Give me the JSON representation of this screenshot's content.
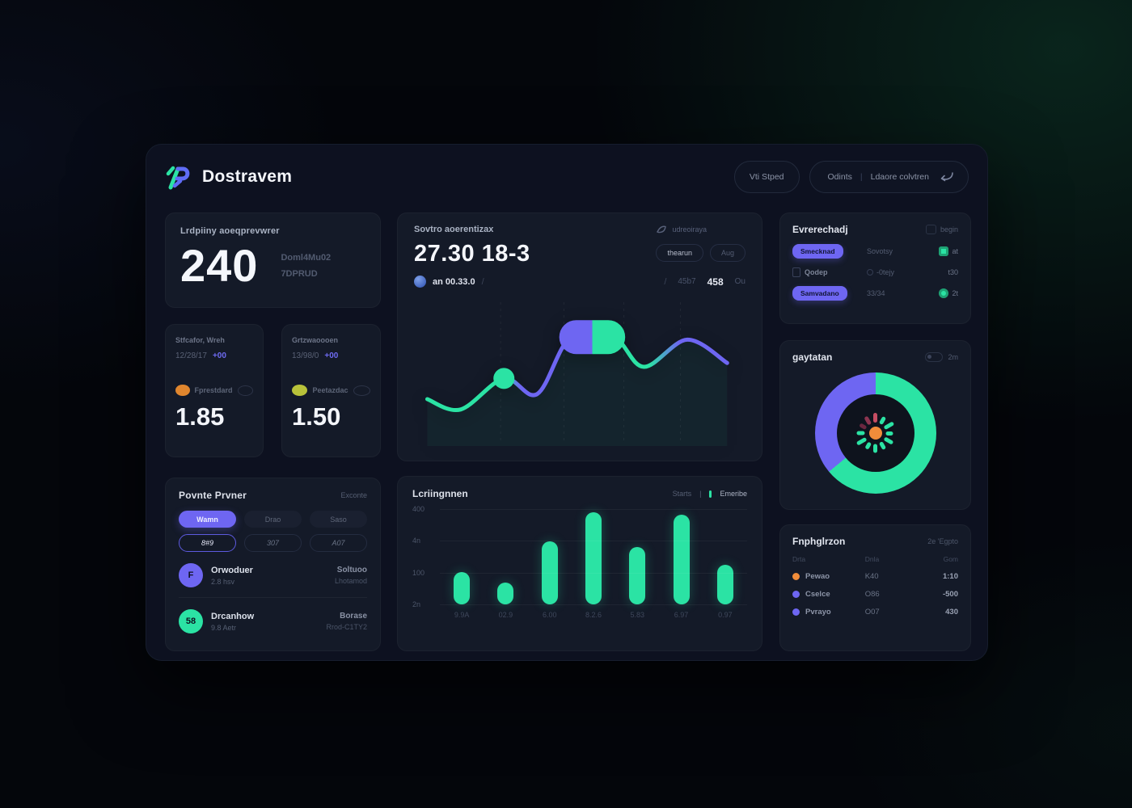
{
  "theme": {
    "green": "#2be3a4",
    "indigo": "#6e66f2",
    "background": "#04060b",
    "panel": "#0d1120",
    "card": "#141a28",
    "orange": "#f08c3a",
    "red": "#c64d63",
    "maroon": "#6b2740"
  },
  "header": {
    "logo_text": "Dostravem",
    "speed_button": "Vti Stped",
    "menu_left": "Odints",
    "menu_divider": "|",
    "menu_right": "Ldaore colvtren"
  },
  "summary_card": {
    "title": "Lrdpiiny aoeqprevwrer",
    "value": "240",
    "side_line1": "Doml4Mu02",
    "side_line2": "7DPRUD"
  },
  "odds_cards": [
    {
      "title": "Stfcafor, Wreh",
      "date": "12/28/17",
      "delta": "+00",
      "team": "Fprestdard",
      "value": "1.85",
      "icon_color": "#e0862e"
    },
    {
      "title": "Grtzwaoooen",
      "date": "13/98/0",
      "delta": "+00",
      "team": "Peetazdac",
      "value": "1.50",
      "icon_color": "#b8c23a"
    }
  ],
  "points_card": {
    "title": "Povnte Prvner",
    "action": "Exconte",
    "tabs": [
      "Wamn",
      "Drao",
      "Saso"
    ],
    "tab_values": [
      "8#9",
      "307",
      "A07"
    ],
    "rows": [
      {
        "avatar": "F",
        "avatar_color": "#6e66f2",
        "name": "Orwoduer",
        "sub": "2.8 hsv",
        "right": "Soltuoo",
        "right_sub": "Lhotamod"
      },
      {
        "avatar": "58",
        "avatar_color": "#2be3a4",
        "name": "Drcanhow",
        "sub": "9.8 Aetr",
        "right": "Borase",
        "right_sub": "Rrod-C1TY2"
      }
    ]
  },
  "line_card": {
    "title": "Sovtro aoerentizax",
    "value": "27.30 18-3",
    "watchers": "udreoiraya",
    "tabs": [
      "thearun",
      "Aug"
    ],
    "meta_left_label": "an 00.33.0",
    "meta_slash": "/",
    "meta_slash2": "/",
    "meta_dim": "45b7",
    "meta_value": "458",
    "meta_unit": "Ou"
  },
  "bars_card": {
    "title": "Lcriingnnen",
    "tab_a": "Starts",
    "tab_divider": "|",
    "tab_b": "Emeribe"
  },
  "schedule_card": {
    "title": "Evrerechadj",
    "action": "begin",
    "rows": [
      {
        "pill": "Smecknad",
        "mid": "Sovotsy",
        "right": "at"
      },
      {
        "label": "Qodep",
        "mid": "-0tejy",
        "right": "t30"
      },
      {
        "pill": "Samvadano",
        "mid": "33/34",
        "right": "2t"
      }
    ]
  },
  "donut_card": {
    "title": "gaytatan",
    "toggle_label": "2m"
  },
  "table_card": {
    "title": "Fnphglrzon",
    "action": "2e 'Egpto",
    "headers": [
      "Drta",
      "Dnla",
      "Gom"
    ],
    "rows": [
      {
        "dot": "#f08c3a",
        "name": "Pewao",
        "mid": "K40",
        "right": "1:10"
      },
      {
        "dot": "#6e66f2",
        "name": "Cselce",
        "mid": "O86",
        "right": "-500"
      },
      {
        "dot": "#6e66f2",
        "name": "Pvrayo",
        "mid": "O07",
        "right": "430"
      }
    ]
  },
  "chart_data": [
    {
      "type": "line",
      "title": "Sovtro aoerentizax",
      "x": [
        4,
        14,
        27,
        37,
        47,
        60,
        69,
        82,
        94
      ],
      "y": [
        30,
        22,
        46,
        34,
        78,
        78,
        55,
        76,
        58
      ],
      "ylim": [
        0,
        100
      ],
      "grid_x": [
        0.26,
        0.45,
        0.63,
        0.8
      ],
      "stroke_stops": [
        {
          "at": 0,
          "color": "#2be3a4"
        },
        {
          "at": 0.24,
          "color": "#2be3a4"
        },
        {
          "at": 0.31,
          "color": "#6e66f2"
        },
        {
          "at": 0.56,
          "color": "#6e66f2"
        },
        {
          "at": 0.63,
          "color": "#2be3a4"
        },
        {
          "at": 0.74,
          "color": "#2be3a4"
        },
        {
          "at": 0.84,
          "color": "#6e66f2"
        },
        {
          "at": 1,
          "color": "#6e66f2"
        }
      ],
      "markers": {
        "dot": {
          "index": 2,
          "r": 13,
          "color": "#2be3a4"
        },
        "pill": {
          "from": 4,
          "to": 5,
          "h": 42,
          "colors": [
            "#6e66f2",
            "#2be3a4"
          ]
        }
      },
      "area_fill": "rgba(43,227,164,0.05)"
    },
    {
      "type": "bar",
      "title": "Lcriingnnen",
      "categories": [
        "9.9A",
        "02.9",
        "6.00",
        "8.2.6",
        "5.83",
        "6.97",
        "0.97"
      ],
      "values": [
        135,
        90,
        265,
        385,
        240,
        375,
        165
      ],
      "yticks": [
        "400",
        "4n",
        "100",
        "2n"
      ],
      "ylim": [
        0,
        400
      ],
      "bar_color": "#2be3a4",
      "grid": "horizontal"
    },
    {
      "type": "donut",
      "title": "gaytatan",
      "segments": [
        {
          "label": "primary",
          "value": 64,
          "color": "#2be3a4"
        },
        {
          "label": "secondary",
          "value": 36,
          "color": "#6e66f2"
        }
      ],
      "burst": {
        "center_color": "#f08c3a",
        "ray_colors": [
          "#6b2740",
          "#8d3550",
          "#c64d63",
          "#2be3a4",
          "#2be3a4",
          "#2be3a4",
          "#2be3a4",
          "#2be3a4",
          "#2be3a4",
          "#2be3a4",
          "#2be3a4",
          "#2be3a4"
        ],
        "ray_lengths": [
          9,
          11,
          12,
          10,
          13,
          9,
          12,
          10,
          11,
          9,
          13,
          10
        ]
      }
    }
  ]
}
